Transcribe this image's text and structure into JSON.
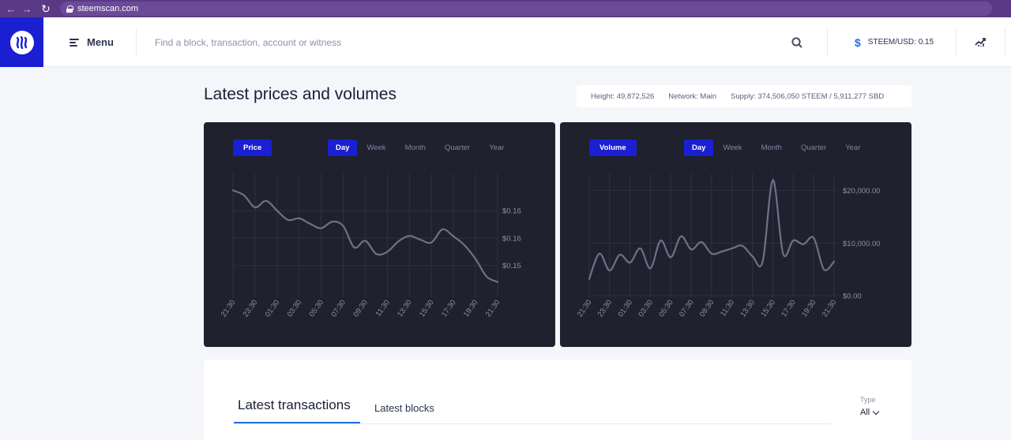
{
  "browser": {
    "url": "steemscan.com"
  },
  "header": {
    "menu_label": "Menu",
    "search_placeholder": "Find a block, transaction, account or witness",
    "price_label": "STEEM/USD: 0.15",
    "icons": [
      "steem-logo-icon",
      "hamburger-icon",
      "search-icon",
      "dollar-icon",
      "chart-trend-icon"
    ]
  },
  "page": {
    "title": "Latest prices and volumes"
  },
  "stats": {
    "height": "Height: 49,872,526",
    "network": "Network: Main",
    "supply": "Supply: 374,506,050 STEEM / 5,911,277 SBD"
  },
  "colors": {
    "brand": "#1a1fd1",
    "panel_bg": "#1f212e",
    "line": "#6e7187",
    "accent": "#1c6fe0"
  },
  "price_panel": {
    "badge": "Price",
    "tabs": [
      "Day",
      "Week",
      "Month",
      "Quarter",
      "Year"
    ],
    "active_tab": "Day"
  },
  "volume_panel": {
    "badge": "Volume",
    "tabs": [
      "Day",
      "Week",
      "Month",
      "Quarter",
      "Year"
    ],
    "active_tab": "Day"
  },
  "chart_data": [
    {
      "type": "line",
      "x": [
        "21:30",
        "22:30",
        "23:30",
        "00:30",
        "01:30",
        "02:30",
        "03:30",
        "04:30",
        "05:30",
        "06:30",
        "07:30",
        "08:30",
        "09:30",
        "10:30",
        "11:30",
        "12:30",
        "13:30",
        "14:30",
        "15:30",
        "16:30",
        "17:30",
        "18:30",
        "19:30",
        "20:30",
        "21:30"
      ],
      "tick_labels": [
        "21:30",
        "23:30",
        "01:30",
        "03:30",
        "05:30",
        "07:30",
        "09:30",
        "11:30",
        "13:30",
        "15:30",
        "17:30",
        "19:30",
        "21:30"
      ],
      "series": [
        {
          "values": [
            0.1637,
            0.1628,
            0.1606,
            0.1618,
            0.16,
            0.1583,
            0.1586,
            0.1576,
            0.1568,
            0.158,
            0.1572,
            0.1533,
            0.1545,
            0.1521,
            0.1525,
            0.1544,
            0.1554,
            0.1547,
            0.1542,
            0.1566,
            0.1553,
            0.1537,
            0.1512,
            0.148,
            0.147
          ]
        }
      ],
      "y_ticks": [
        {
          "value": 0.16,
          "label": "$0.16"
        },
        {
          "value": 0.155,
          "label": "$0.16"
        },
        {
          "value": 0.15,
          "label": "$0.15"
        }
      ],
      "ylim": [
        0.1445,
        0.1675
      ],
      "grid": true,
      "legend": "none"
    },
    {
      "type": "line",
      "x": [
        "21:30",
        "22:30",
        "23:30",
        "00:30",
        "01:30",
        "02:30",
        "03:30",
        "04:30",
        "05:30",
        "06:30",
        "07:30",
        "08:30",
        "09:30",
        "10:30",
        "11:30",
        "12:30",
        "13:30",
        "14:30",
        "15:30",
        "16:30",
        "17:30",
        "18:30",
        "19:30",
        "20:30",
        "21:30"
      ],
      "tick_labels": [
        "21:30",
        "23:30",
        "01:30",
        "03:30",
        "05:30",
        "07:30",
        "09:30",
        "11:30",
        "13:30",
        "15:30",
        "17:30",
        "19:30",
        "21:30"
      ],
      "series": [
        {
          "values": [
            3200,
            8000,
            4800,
            7800,
            6300,
            9000,
            5200,
            10500,
            7300,
            11300,
            8800,
            10200,
            8000,
            8400,
            9000,
            9500,
            7500,
            6500,
            22000,
            8000,
            10500,
            9800,
            11000,
            5000,
            6500
          ]
        }
      ],
      "y_ticks": [
        {
          "value": 20000,
          "label": "$20,000.00"
        },
        {
          "value": 10000,
          "label": "$10,000.00"
        },
        {
          "value": 0,
          "label": "$0.00"
        }
      ],
      "ylim": [
        0,
        24000
      ],
      "grid": true,
      "legend": "none"
    }
  ],
  "lower": {
    "tab_transactions": "Latest transactions",
    "tab_blocks": "Latest blocks",
    "type_label": "Type",
    "type_value": "All"
  }
}
